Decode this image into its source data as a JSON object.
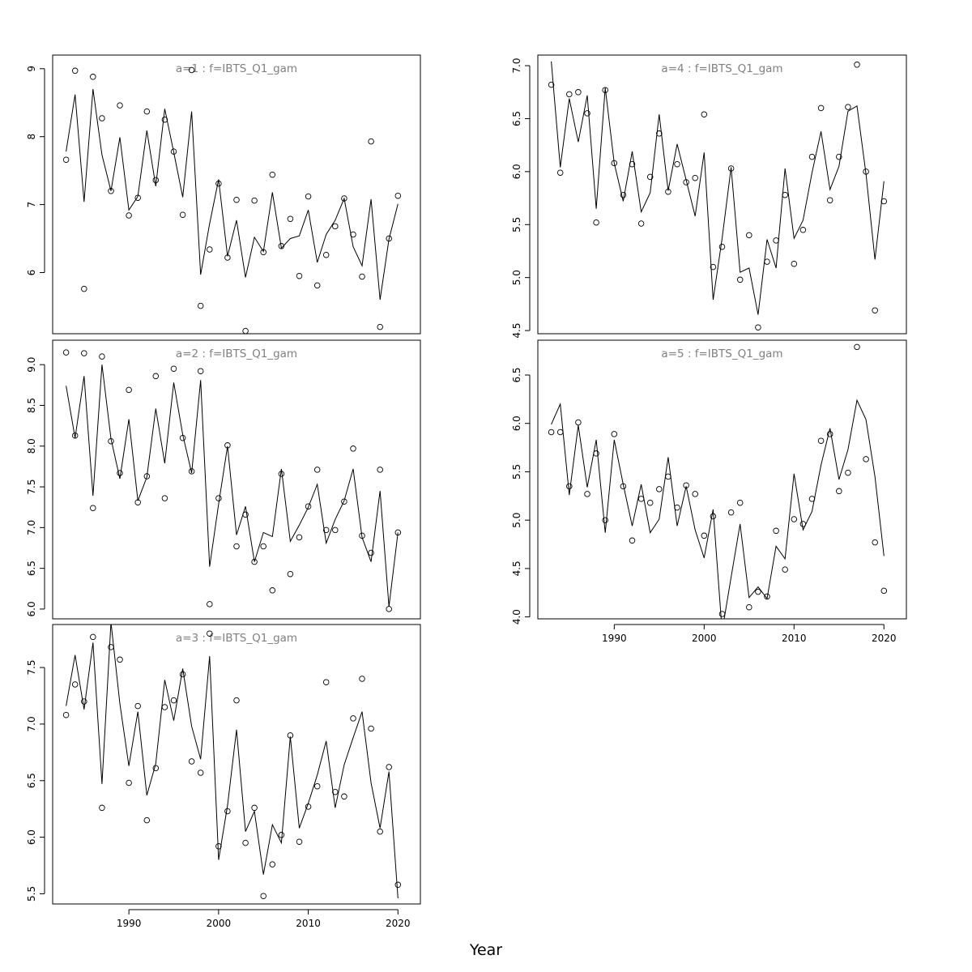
{
  "figure": {
    "xlabel": "Year"
  },
  "chart_data": [
    {
      "type": "scatter",
      "title": "a=1  :  f=IBTS_Q1_gam",
      "ylim": [
        5.1,
        9.2
      ],
      "yticks": [
        6,
        7,
        8,
        9
      ],
      "xlim": [
        1981.5,
        2022.5
      ],
      "xticks": [],
      "x": [
        1983,
        1984,
        1985,
        1986,
        1987,
        1988,
        1989,
        1990,
        1991,
        1992,
        1993,
        1994,
        1995,
        1996,
        1997,
        1998,
        1999,
        2000,
        2001,
        2002,
        2003,
        2004,
        2005,
        2006,
        2007,
        2008,
        2009,
        2010,
        2011,
        2012,
        2013,
        2014,
        2015,
        2016,
        2017,
        2018,
        2019,
        2020
      ],
      "series": [
        {
          "style": "points",
          "values": [
            7.66,
            8.97,
            5.76,
            8.88,
            8.27,
            7.2,
            8.46,
            6.84,
            7.1,
            8.37,
            7.36,
            8.25,
            7.78,
            6.85,
            8.98,
            5.51,
            6.34,
            7.31,
            6.22,
            7.07,
            5.14,
            7.06,
            6.3,
            7.44,
            6.39,
            6.79,
            5.95,
            7.12,
            5.81,
            6.26,
            6.68,
            7.09,
            6.56,
            5.94,
            7.93,
            5.2,
            6.5,
            7.13
          ]
        },
        {
          "style": "line",
          "values": [
            7.78,
            8.62,
            7.04,
            8.7,
            7.73,
            7.2,
            7.99,
            6.92,
            7.12,
            8.09,
            7.27,
            8.41,
            7.77,
            7.11,
            8.37,
            5.97,
            6.72,
            7.37,
            6.24,
            6.77,
            5.93,
            6.52,
            6.31,
            7.18,
            6.36,
            6.5,
            6.54,
            6.92,
            6.15,
            6.56,
            6.77,
            7.09,
            6.38,
            6.1,
            7.08,
            5.6,
            6.49,
            7.01
          ]
        }
      ]
    },
    {
      "type": "scatter",
      "title": "a=2  :  f=IBTS_Q1_gam",
      "ylim": [
        5.88,
        9.3
      ],
      "yticks": [
        6.0,
        6.5,
        7.0,
        7.5,
        8.0,
        8.5,
        9.0
      ],
      "ytick_labels": [
        "6.0",
        "6.5",
        "7.0",
        "7.5",
        "8.0",
        "8.5",
        "9.0"
      ],
      "xlim": [
        1981.5,
        2022.5
      ],
      "xticks": [],
      "x": [
        1983,
        1984,
        1985,
        1986,
        1987,
        1988,
        1989,
        1990,
        1991,
        1992,
        1993,
        1994,
        1995,
        1996,
        1997,
        1998,
        1999,
        2000,
        2001,
        2002,
        2003,
        2004,
        2005,
        2006,
        2007,
        2008,
        2009,
        2010,
        2011,
        2012,
        2013,
        2014,
        2015,
        2016,
        2017,
        2018,
        2019,
        2020
      ],
      "series": [
        {
          "style": "points",
          "values": [
            9.15,
            8.13,
            9.14,
            7.24,
            9.1,
            8.06,
            7.67,
            8.69,
            7.31,
            7.63,
            8.86,
            7.36,
            8.95,
            8.1,
            7.69,
            8.92,
            6.06,
            7.36,
            8.01,
            6.77,
            7.16,
            6.58,
            6.77,
            6.23,
            7.66,
            6.43,
            6.88,
            7.26,
            7.71,
            6.97,
            6.97,
            7.32,
            7.97,
            6.9,
            6.69,
            7.71,
            6.0,
            6.94
          ]
        },
        {
          "style": "line",
          "values": [
            8.74,
            8.1,
            8.86,
            7.39,
            9.0,
            8.09,
            7.6,
            8.33,
            7.33,
            7.62,
            8.46,
            7.79,
            8.78,
            8.14,
            7.67,
            8.81,
            6.52,
            7.29,
            8.0,
            6.91,
            7.26,
            6.58,
            6.94,
            6.89,
            7.72,
            6.83,
            7.03,
            7.25,
            7.53,
            6.81,
            7.1,
            7.33,
            7.72,
            6.88,
            6.58,
            7.45,
            6.03,
            6.94
          ]
        }
      ]
    },
    {
      "type": "scatter",
      "title": "a=3  :  f=IBTS_Q1_gam",
      "ylim": [
        5.41,
        7.88
      ],
      "yticks": [
        5.5,
        6.0,
        6.5,
        7.0,
        7.5
      ],
      "ytick_labels": [
        "5.5",
        "6.0",
        "6.5",
        "7.0",
        "7.5"
      ],
      "xlim": [
        1981.5,
        2022.5
      ],
      "xticks": [
        1990,
        2000,
        2010,
        2020
      ],
      "x": [
        1983,
        1984,
        1985,
        1986,
        1987,
        1988,
        1989,
        1990,
        1991,
        1992,
        1993,
        1994,
        1995,
        1996,
        1997,
        1998,
        1999,
        2000,
        2001,
        2002,
        2003,
        2004,
        2005,
        2006,
        2007,
        2008,
        2009,
        2010,
        2011,
        2012,
        2013,
        2014,
        2015,
        2016,
        2017,
        2018,
        2019,
        2020
      ],
      "series": [
        {
          "style": "points",
          "values": [
            7.08,
            7.35,
            7.2,
            7.77,
            6.26,
            7.68,
            7.57,
            6.48,
            7.16,
            6.15,
            6.61,
            7.15,
            7.21,
            7.44,
            6.67,
            6.57,
            7.8,
            5.92,
            6.23,
            7.21,
            5.95,
            6.26,
            5.48,
            5.76,
            6.02,
            6.9,
            5.96,
            6.27,
            6.45,
            7.37,
            6.4,
            6.36,
            7.05,
            7.4,
            6.96,
            6.05,
            6.62,
            5.58
          ]
        },
        {
          "style": "line",
          "values": [
            7.16,
            7.61,
            7.13,
            7.72,
            6.47,
            7.9,
            7.18,
            6.63,
            7.11,
            6.37,
            6.65,
            7.39,
            7.03,
            7.49,
            6.98,
            6.69,
            7.6,
            5.8,
            6.28,
            6.95,
            6.05,
            6.23,
            5.67,
            6.11,
            5.95,
            6.89,
            6.08,
            6.3,
            6.55,
            6.85,
            6.26,
            6.64,
            6.88,
            7.11,
            6.48,
            6.08,
            6.58,
            5.46
          ]
        }
      ]
    },
    {
      "type": "scatter",
      "title": "a=4  :  f=IBTS_Q1_gam",
      "ylim": [
        4.47,
        7.1
      ],
      "yticks": [
        4.5,
        5.0,
        5.5,
        6.0,
        6.5,
        7.0
      ],
      "ytick_labels": [
        "4.5",
        "5.0",
        "5.5",
        "6.0",
        "6.5",
        "7.0"
      ],
      "xlim": [
        1981.5,
        2022.5
      ],
      "xticks": [],
      "x": [
        1983,
        1984,
        1985,
        1986,
        1987,
        1988,
        1989,
        1990,
        1991,
        1992,
        1993,
        1994,
        1995,
        1996,
        1997,
        1998,
        1999,
        2000,
        2001,
        2002,
        2003,
        2004,
        2005,
        2006,
        2007,
        2008,
        2009,
        2010,
        2011,
        2012,
        2013,
        2014,
        2015,
        2016,
        2017,
        2018,
        2019,
        2020
      ],
      "series": [
        {
          "style": "points",
          "values": [
            6.82,
            5.99,
            6.73,
            6.75,
            6.55,
            5.52,
            6.77,
            6.08,
            5.78,
            6.07,
            5.51,
            5.95,
            6.36,
            5.81,
            6.07,
            5.9,
            5.94,
            6.54,
            5.1,
            5.29,
            6.03,
            4.98,
            5.4,
            4.53,
            5.15,
            5.35,
            5.78,
            5.13,
            5.45,
            6.14,
            6.6,
            5.73,
            6.14,
            6.61,
            7.01,
            6.0,
            4.69,
            5.72
          ]
        },
        {
          "style": "line",
          "values": [
            7.04,
            6.04,
            6.69,
            6.28,
            6.72,
            5.65,
            6.79,
            6.08,
            5.72,
            6.19,
            5.62,
            5.8,
            6.54,
            5.82,
            6.26,
            5.92,
            5.58,
            6.18,
            4.79,
            5.37,
            6.04,
            5.05,
            5.09,
            4.65,
            5.36,
            5.09,
            6.03,
            5.37,
            5.54,
            5.99,
            6.38,
            5.83,
            6.05,
            6.57,
            6.62,
            5.98,
            5.17,
            5.91
          ]
        }
      ]
    },
    {
      "type": "scatter",
      "title": "a=5  :  f=IBTS_Q1_gam",
      "ylim": [
        3.98,
        6.86
      ],
      "yticks": [
        4.0,
        4.5,
        5.0,
        5.5,
        6.0,
        6.5
      ],
      "ytick_labels": [
        "4.0",
        "4.5",
        "5.0",
        "5.5",
        "6.0",
        "6.5"
      ],
      "xlim": [
        1981.5,
        2022.5
      ],
      "xticks": [
        1990,
        2000,
        2010,
        2020
      ],
      "x": [
        1983,
        1984,
        1985,
        1986,
        1987,
        1988,
        1989,
        1990,
        1991,
        1992,
        1993,
        1994,
        1995,
        1996,
        1997,
        1998,
        1999,
        2000,
        2001,
        2002,
        2003,
        2004,
        2005,
        2006,
        2007,
        2008,
        2009,
        2010,
        2011,
        2012,
        2013,
        2014,
        2015,
        2016,
        2017,
        2018,
        2019,
        2020
      ],
      "series": [
        {
          "style": "points",
          "values": [
            5.91,
            5.91,
            5.35,
            6.01,
            5.27,
            5.69,
            5.0,
            5.89,
            5.35,
            4.79,
            5.22,
            5.18,
            5.32,
            5.45,
            5.13,
            5.36,
            5.27,
            4.84,
            5.04,
            4.03,
            5.08,
            5.18,
            4.1,
            4.26,
            4.21,
            4.89,
            4.49,
            5.01,
            4.96,
            5.22,
            5.82,
            5.89,
            5.3,
            5.49,
            6.79,
            5.63,
            4.77,
            4.27
          ]
        },
        {
          "style": "line",
          "values": [
            5.99,
            6.2,
            5.26,
            5.98,
            5.34,
            5.83,
            4.87,
            5.83,
            5.37,
            4.94,
            5.37,
            4.87,
            5.01,
            5.65,
            4.94,
            5.35,
            4.9,
            4.61,
            5.11,
            3.85,
            4.41,
            4.96,
            4.2,
            4.31,
            4.19,
            4.73,
            4.6,
            5.48,
            4.9,
            5.09,
            5.57,
            5.95,
            5.42,
            5.73,
            6.24,
            6.04,
            5.45,
            4.63
          ]
        }
      ]
    }
  ]
}
